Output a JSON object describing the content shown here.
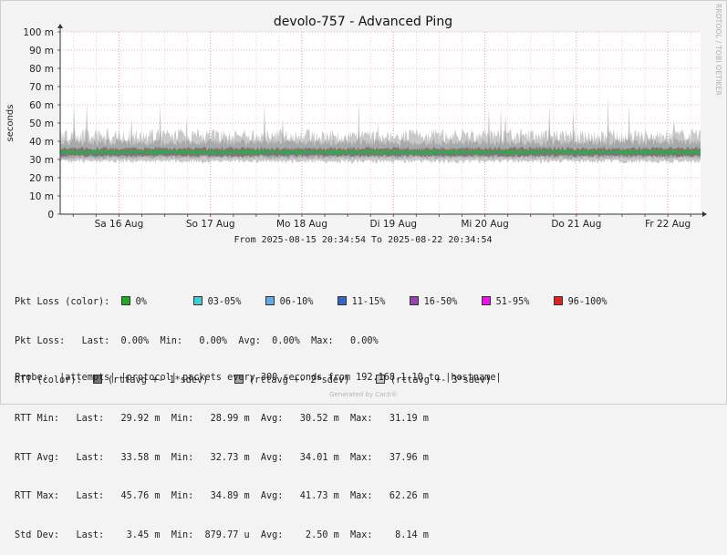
{
  "chart_data": {
    "type": "area",
    "title": "devolo-757 - Advanced Ping",
    "ylabel": "seconds",
    "xlabel": "",
    "ylim": [
      0,
      0.1
    ],
    "y_ticks": [
      "0",
      "10 m",
      "20 m",
      "30 m",
      "40 m",
      "50 m",
      "60 m",
      "70 m",
      "80 m",
      "90 m",
      "100 m"
    ],
    "x_ticks": [
      "Sa 16 Aug",
      "So 17 Aug",
      "Mo 18 Aug",
      "Di 19 Aug",
      "Mi 20 Aug",
      "Do 21 Aug",
      "Fr 22 Aug"
    ],
    "date_range_text": "From 2025-08-15 20:34:54 To 2025-08-22 20:34:54",
    "vendor_text": "RRDTOOL / TOBI OETIKER",
    "series": [
      {
        "name": "rttavg +- 3*sdev",
        "approx_low": 0.029,
        "approx_high": 0.043,
        "peak": 0.0623,
        "color": "#c8c8c8"
      },
      {
        "name": "rttavg +- 2*sdev",
        "approx_low": 0.031,
        "approx_high": 0.039,
        "color": "#a8a8a8"
      },
      {
        "name": "rttavg +- 1*sdev",
        "approx_low": 0.032,
        "approx_high": 0.036,
        "color": "#787878"
      },
      {
        "name": "avg",
        "avg": 0.03401,
        "min": 0.03273,
        "max": 0.03796,
        "color": "#22b33a"
      }
    ],
    "grid": true
  },
  "legend": {
    "pkt_loss_color_label": "Pkt Loss (color):",
    "loss_classes": [
      {
        "label": "0%",
        "color": "#22aa22"
      },
      {
        "label": "03-05%",
        "color": "#44cccc"
      },
      {
        "label": "06-10%",
        "color": "#66aadd"
      },
      {
        "label": "11-15%",
        "color": "#3366cc"
      },
      {
        "label": "16-50%",
        "color": "#9944aa"
      },
      {
        "label": "51-95%",
        "color": "#ee11ee"
      },
      {
        "label": "96-100%",
        "color": "#dd2222"
      }
    ],
    "pkt_loss_row": "Pkt Loss:   Last:  0.00%  Min:   0.00%  Avg:  0.00%  Max:   0.00%",
    "rtt_color_label": "RTT (color):",
    "rtt_classes": [
      {
        "label": "(rttavg +- 1*sdev)",
        "color": "#777777"
      },
      {
        "label": "(rttavg +- 2*sdev)",
        "color": "#a4a4a4"
      },
      {
        "label": "(rttavg +- 3*sdev)",
        "color": "#c8c8c8"
      }
    ],
    "stat_rows": [
      "RTT Min:   Last:   29.92 m  Min:   28.99 m  Avg:   30.52 m  Max:   31.19 m",
      "RTT Avg:   Last:   33.58 m  Min:   32.73 m  Avg:   34.01 m  Max:   37.96 m",
      "RTT Max:   Last:   45.76 m  Min:   34.89 m  Avg:   41.73 m  Max:   62.26 m",
      "Std Dev:   Last:    3.45 m  Min:  879.77 u  Avg:    2.50 m  Max:    8.14 m"
    ],
    "probe_row": "Probe:  |attempts| |protocol| packets every 300 seconds from 192.168.1.10 to |hostname|"
  },
  "credit": "Generated by Cacti®"
}
